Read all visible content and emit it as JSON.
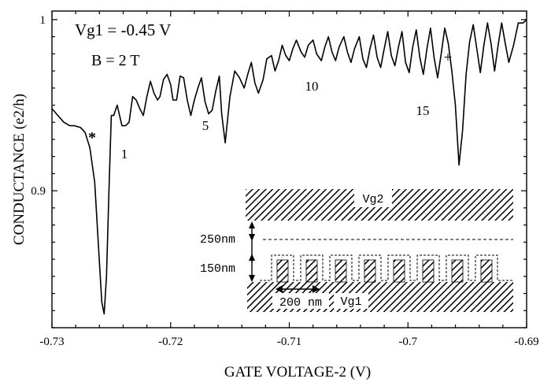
{
  "chart_data": {
    "type": "line",
    "title": "",
    "xlabel": "GATE VOLTAGE-2  (V)",
    "ylabel": "CONDUCTANCE  (e2/h)",
    "xlim": [
      -0.73,
      -0.69
    ],
    "ylim": [
      0.82,
      1.005
    ],
    "x_ticks": [
      -0.73,
      -0.72,
      -0.71,
      -0.7,
      -0.69
    ],
    "x_tick_labels": [
      "-0.73",
      "-0.72",
      "-0.71",
      "-0.7",
      "-0.69"
    ],
    "y_ticks": [
      0.9,
      1.0
    ],
    "y_tick_labels": [
      "0.9",
      "1"
    ],
    "grid": false,
    "annotations": {
      "vg1": "Vg1 = -0.45 V",
      "field": "B = 2 T",
      "star": "*",
      "plus": "+",
      "n1": "1",
      "n5": "5",
      "n10": "10",
      "n15": "15"
    },
    "inset": {
      "gate_top": "Vg2",
      "gate_bottom": "Vg1",
      "gap_label": "250nm",
      "finger_label": "150nm",
      "period_label": "200 nm"
    },
    "series": [
      {
        "x": [
          -0.73,
          -0.7295,
          -0.729,
          -0.7285,
          -0.7281,
          -0.7276,
          -0.7272,
          -0.7268,
          -0.7264,
          -0.7261,
          -0.7258,
          -0.7256,
          -0.7254,
          -0.7252,
          -0.725,
          -0.7248,
          -0.7245,
          -0.7243,
          -0.7241,
          -0.7238,
          -0.7235,
          -0.7232,
          -0.7229,
          -0.7226,
          -0.7223,
          -0.722,
          -0.7217,
          -0.7214,
          -0.7211,
          -0.7209,
          -0.7206,
          -0.7203,
          -0.72,
          -0.7198,
          -0.7195,
          -0.7192,
          -0.7189,
          -0.7186,
          -0.7183,
          -0.718,
          -0.7177,
          -0.7174,
          -0.7171,
          -0.7168,
          -0.7165,
          -0.7162,
          -0.7159,
          -0.7157,
          -0.7154,
          -0.715,
          -0.7146,
          -0.7142,
          -0.7138,
          -0.7135,
          -0.7132,
          -0.7129,
          -0.7126,
          -0.7122,
          -0.7119,
          -0.7115,
          -0.7112,
          -0.7109,
          -0.7106,
          -0.7103,
          -0.71,
          -0.7097,
          -0.7094,
          -0.709,
          -0.7087,
          -0.7084,
          -0.708,
          -0.7077,
          -0.7073,
          -0.707,
          -0.7067,
          -0.7064,
          -0.7061,
          -0.7058,
          -0.7054,
          -0.7051,
          -0.7048,
          -0.7045,
          -0.7041,
          -0.7038,
          -0.7035,
          -0.7032,
          -0.7029,
          -0.7026,
          -0.7023,
          -0.702,
          -0.7017,
          -0.7014,
          -0.7011,
          -0.7008,
          -0.7005,
          -0.7002,
          -0.6999,
          -0.6996,
          -0.6993,
          -0.699,
          -0.6987,
          -0.6984,
          -0.6981,
          -0.6978,
          -0.6975,
          -0.6972,
          -0.6969,
          -0.6966,
          -0.6963,
          -0.696,
          -0.6957,
          -0.6954,
          -0.6951,
          -0.6948,
          -0.6945,
          -0.6942,
          -0.6939,
          -0.6936,
          -0.6933,
          -0.693,
          -0.6927,
          -0.6924,
          -0.6921,
          -0.6918,
          -0.6915,
          -0.6911,
          -0.6907,
          -0.6903,
          -0.69
        ],
        "values": [
          0.948,
          0.944,
          0.94,
          0.938,
          0.938,
          0.937,
          0.934,
          0.925,
          0.905,
          0.87,
          0.835,
          0.828,
          0.85,
          0.9,
          0.944,
          0.944,
          0.95,
          0.944,
          0.938,
          0.938,
          0.94,
          0.955,
          0.953,
          0.948,
          0.944,
          0.955,
          0.964,
          0.957,
          0.953,
          0.955,
          0.965,
          0.968,
          0.962,
          0.953,
          0.953,
          0.967,
          0.966,
          0.953,
          0.944,
          0.953,
          0.96,
          0.966,
          0.952,
          0.945,
          0.947,
          0.958,
          0.967,
          0.945,
          0.928,
          0.955,
          0.97,
          0.966,
          0.96,
          0.968,
          0.975,
          0.963,
          0.957,
          0.965,
          0.977,
          0.979,
          0.97,
          0.976,
          0.985,
          0.979,
          0.976,
          0.983,
          0.988,
          0.981,
          0.978,
          0.985,
          0.988,
          0.98,
          0.976,
          0.984,
          0.99,
          0.981,
          0.976,
          0.984,
          0.99,
          0.981,
          0.975,
          0.983,
          0.99,
          0.977,
          0.972,
          0.983,
          0.991,
          0.978,
          0.972,
          0.983,
          0.993,
          0.979,
          0.973,
          0.984,
          0.993,
          0.975,
          0.969,
          0.984,
          0.994,
          0.978,
          0.968,
          0.983,
          0.995,
          0.978,
          0.966,
          0.98,
          0.995,
          0.986,
          0.97,
          0.95,
          0.915,
          0.935,
          0.968,
          0.987,
          0.997,
          0.983,
          0.969,
          0.985,
          0.998,
          0.986,
          0.97,
          0.985,
          0.998,
          0.986,
          0.975,
          0.985,
          0.998,
          0.998,
          1.0
        ]
      }
    ]
  }
}
